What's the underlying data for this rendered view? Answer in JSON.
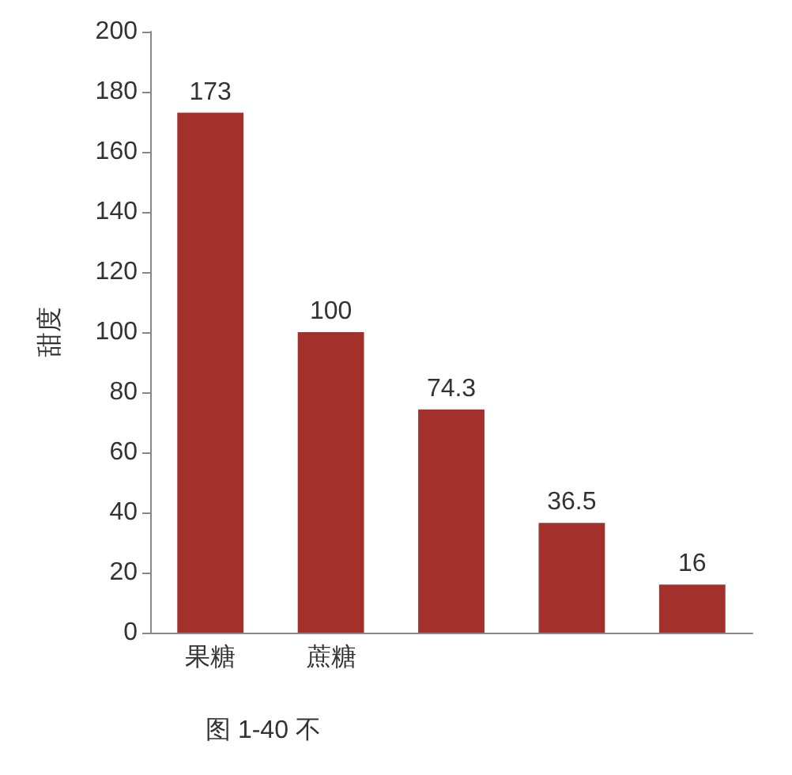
{
  "chart_data": {
    "type": "bar",
    "ylabel": "甜度",
    "categories": [
      "果糖",
      "蔗糖",
      null,
      null,
      null
    ],
    "values": [
      173,
      100,
      74.3,
      36.5,
      16
    ],
    "color": "#a3302a",
    "ylim": [
      0,
      200
    ],
    "yticks": [
      0,
      20,
      40,
      60,
      80,
      100,
      120,
      140,
      160,
      180,
      200
    ],
    "data_labels": true,
    "grid": false,
    "annotations": [
      "图 1-40 不"
    ]
  }
}
